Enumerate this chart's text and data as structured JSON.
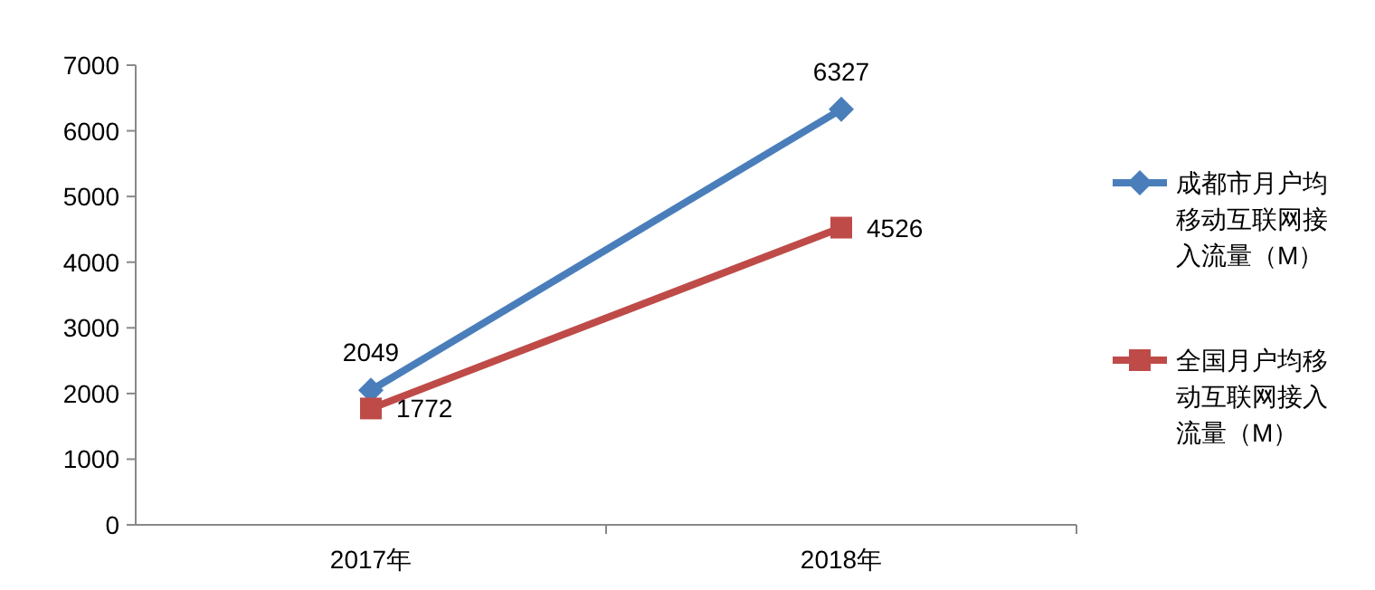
{
  "chart_data": {
    "type": "line",
    "categories": [
      "2017年",
      "2018年"
    ],
    "series": [
      {
        "name": "成都市月户均移动互联网接入流量（M）",
        "color": "#4a7ebb",
        "values": [
          2049,
          6327
        ],
        "marker": "diamond"
      },
      {
        "name": "全国月户均移动互联网接入流量（M）",
        "color": "#be4b48",
        "values": [
          1772,
          4526
        ],
        "marker": "square"
      }
    ],
    "ylim": [
      0,
      7000
    ],
    "yticks": [
      0,
      1000,
      2000,
      3000,
      4000,
      5000,
      6000,
      7000
    ],
    "data_labels": true,
    "legend": "right",
    "grid": false,
    "line_style": "solid"
  }
}
